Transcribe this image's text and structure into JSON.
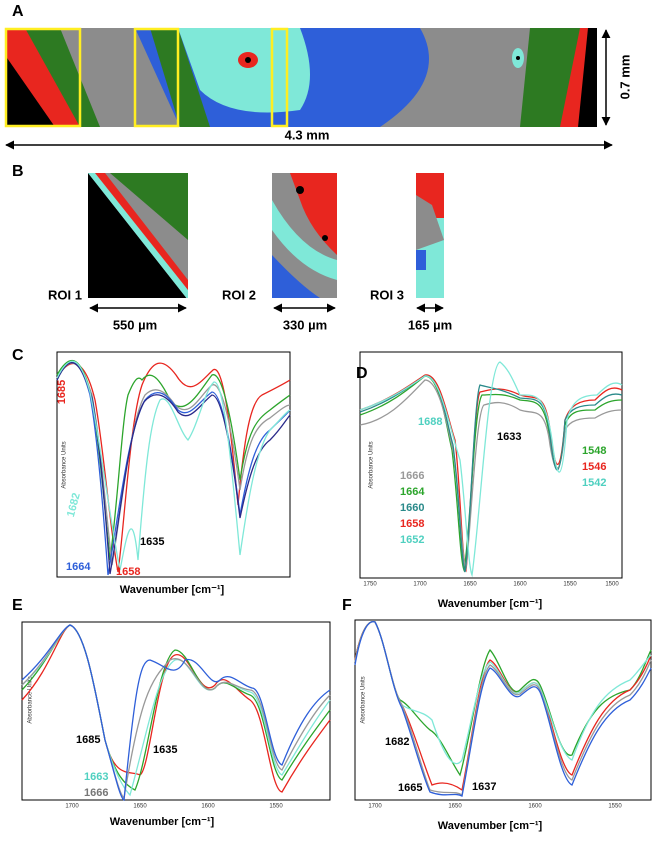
{
  "panels": {
    "a": {
      "label": "A",
      "height": "0.7 mm",
      "width": "4.3 mm"
    },
    "b": {
      "label": "B",
      "rois": [
        {
          "name": "ROI 1",
          "size": "550 µm"
        },
        {
          "name": "ROI 2",
          "size": "330 µm"
        },
        {
          "name": "ROI 3",
          "size": "165 µm"
        }
      ]
    },
    "c": {
      "label": "C",
      "x_label": "Wavenumber [cm⁻¹]",
      "y_label": "Absorbance Units",
      "annotations": [
        "1685",
        "1682",
        "1664",
        "1658",
        "1635"
      ]
    },
    "d": {
      "label": "D",
      "x_label": "Wavenumber [cm⁻¹]",
      "y_label": "Absorbance Units",
      "xticks": [
        "1750",
        "1700",
        "1650",
        "1600",
        "1550",
        "1500"
      ],
      "annotations": [
        "1688",
        "1633"
      ],
      "legend_left": [
        "1666",
        "1664",
        "1660",
        "1658",
        "1652"
      ],
      "legend_right": [
        "1548",
        "1546",
        "1542"
      ]
    },
    "e": {
      "label": "E",
      "x_label": "Wavenumber [cm⁻¹]",
      "y_label": "Absorbance Units",
      "xticks": [
        "1700",
        "1650",
        "1600",
        "1550"
      ],
      "annotations": [
        "1685",
        "1635",
        "1663",
        "1666"
      ]
    },
    "f": {
      "label": "F",
      "x_label": "Wavenumber [cm⁻¹]",
      "y_label": "Absorbance Units",
      "xticks": [
        "1700",
        "1650",
        "1600",
        "1550"
      ],
      "annotations": [
        "1682",
        "1665",
        "1637"
      ]
    }
  }
}
